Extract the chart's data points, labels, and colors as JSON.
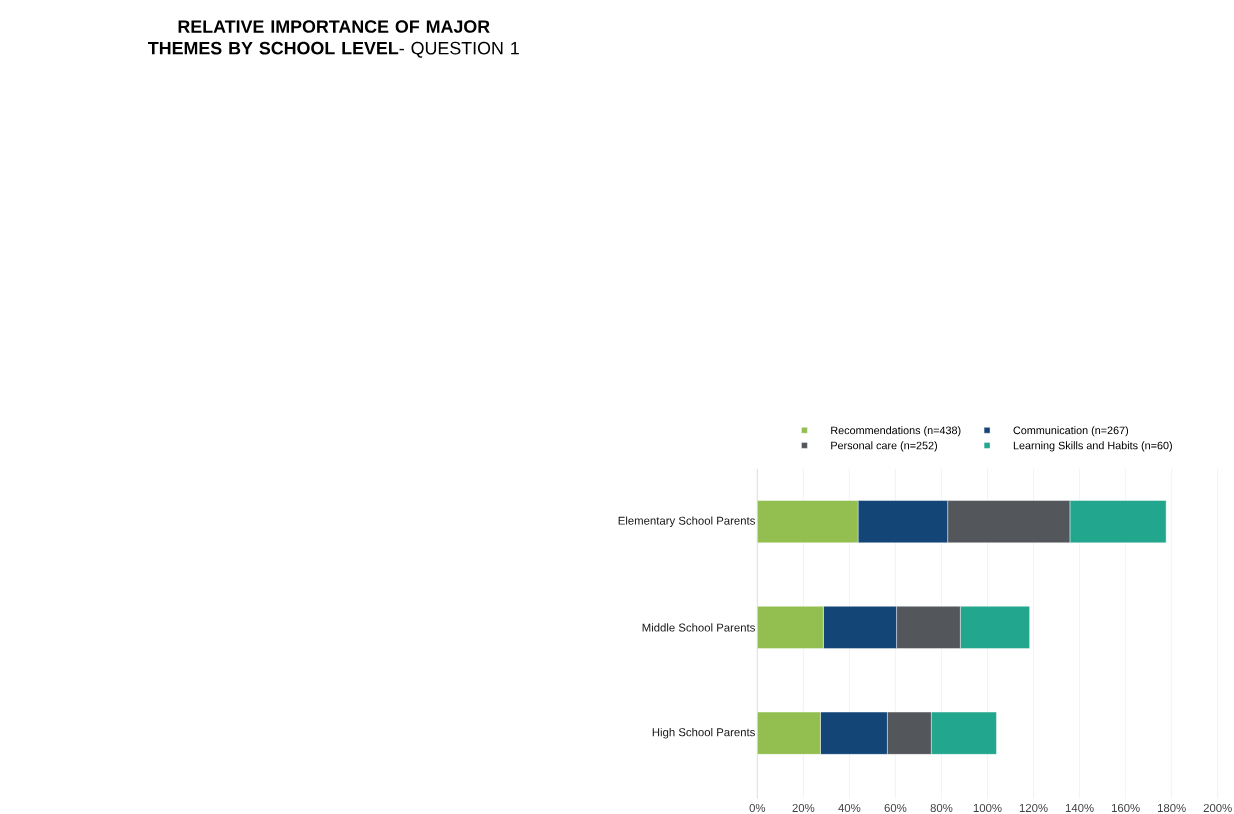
{
  "chart_data": {
    "type": "bar",
    "orientation": "horizontal",
    "stacked": true,
    "title": "**RELATIVE IMPORTANCE OF MAJOR THEMES BY SCHOOL LEVEL**- QUESTION 1",
    "categories": [
      "Elementary School Parents",
      "Middle School Parents",
      "High School Parents"
    ],
    "series": [
      {
        "name": "Recommendations (n=438)",
        "color": "#92bf50",
        "values": [
          43.8,
          28.7,
          27.4
        ]
      },
      {
        "name": "Communication (n=267)",
        "color": "#134677",
        "values": [
          38.9,
          31.8,
          29.1
        ]
      },
      {
        "name": "Personal care (n=252)",
        "color": "#53565a",
        "values": [
          53.1,
          27.7,
          19.1
        ]
      },
      {
        "name": "Learning Skills and Habits (n=60)",
        "color": "#22a68d",
        "values": [
          41.8,
          30.1,
          28.3
        ]
      }
    ],
    "xlim": [
      0,
      200
    ],
    "xticks": [
      {
        "value": 0,
        "label": "0%"
      },
      {
        "value": 20,
        "label": "20%"
      },
      {
        "value": 40,
        "label": "40%"
      },
      {
        "value": 60,
        "label": "60%"
      },
      {
        "value": 80,
        "label": "80%"
      },
      {
        "value": 100,
        "label": "100%"
      },
      {
        "value": 120,
        "label": "120%"
      },
      {
        "value": 140,
        "label": "140%"
      },
      {
        "value": 160,
        "label": "160%"
      },
      {
        "value": 180,
        "label": "180%"
      },
      {
        "value": 200,
        "label": "200%"
      }
    ],
    "grid": "x",
    "legend": "top"
  }
}
